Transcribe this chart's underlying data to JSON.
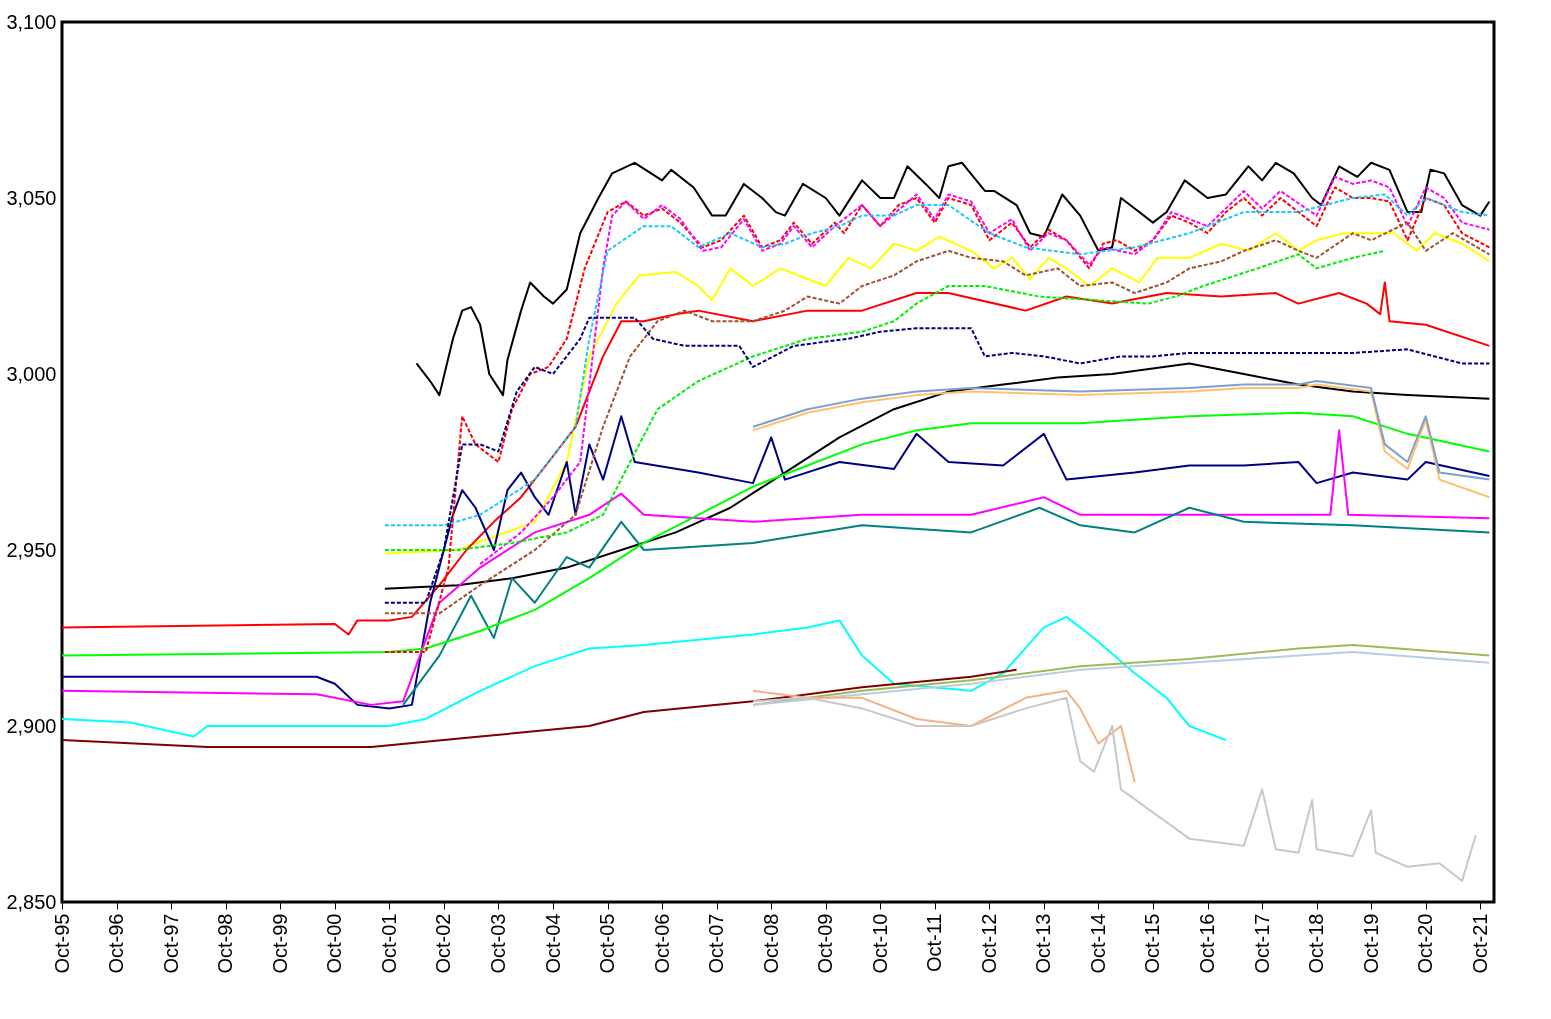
{
  "chart_data": {
    "type": "line",
    "xlim": [
      "1995-10",
      "2022-01"
    ],
    "ylim": [
      2850,
      3100
    ],
    "yticks": [
      {
        "value": 2850,
        "label": "2,850"
      },
      {
        "value": 2900,
        "label": "2,900"
      },
      {
        "value": 2950,
        "label": "2,950"
      },
      {
        "value": 3000,
        "label": "3,000"
      },
      {
        "value": 3050,
        "label": "3,050"
      },
      {
        "value": 3100,
        "label": "3,100"
      }
    ],
    "xticks": [
      {
        "value": "1995-10",
        "label": "Oct-95"
      },
      {
        "value": "1996-10",
        "label": "Oct-96"
      },
      {
        "value": "1997-10",
        "label": "Oct-97"
      },
      {
        "value": "1998-10",
        "label": "Oct-98"
      },
      {
        "value": "1999-10",
        "label": "Oct-99"
      },
      {
        "value": "2000-10",
        "label": "Oct-00"
      },
      {
        "value": "2001-10",
        "label": "Oct-01"
      },
      {
        "value": "2002-10",
        "label": "Oct-02"
      },
      {
        "value": "2003-10",
        "label": "Oct-03"
      },
      {
        "value": "2004-10",
        "label": "Oct-04"
      },
      {
        "value": "2005-10",
        "label": "Oct-05"
      },
      {
        "value": "2006-10",
        "label": "Oct-06"
      },
      {
        "value": "2007-10",
        "label": "Oct-07"
      },
      {
        "value": "2008-10",
        "label": "Oct-08"
      },
      {
        "value": "2009-10",
        "label": "Oct-09"
      },
      {
        "value": "2010-10",
        "label": "Oct-10"
      },
      {
        "value": "2011-10",
        "label": "Oct-11"
      },
      {
        "value": "2012-10",
        "label": "Oct-12"
      },
      {
        "value": "2013-10",
        "label": "Oct-13"
      },
      {
        "value": "2014-10",
        "label": "Oct-14"
      },
      {
        "value": "2015-10",
        "label": "Oct-15"
      },
      {
        "value": "2016-10",
        "label": "Oct-16"
      },
      {
        "value": "2017-10",
        "label": "Oct-17"
      },
      {
        "value": "2018-10",
        "label": "Oct-18"
      },
      {
        "value": "2019-10",
        "label": "Oct-19"
      },
      {
        "value": "2020-10",
        "label": "Oct-20"
      },
      {
        "value": "2021-10",
        "label": "Oct-21"
      }
    ],
    "grid": false,
    "line_style": "solid",
    "marker": "none",
    "series": [
      {
        "color": "#000000",
        "x": [
          "2002-04",
          "2002-07",
          "2002-09",
          "2002-12",
          "2003-02",
          "2003-04",
          "2003-06",
          "2003-08",
          "2003-11",
          "2003-12",
          "2004-03",
          "2004-05",
          "2004-08",
          "2004-10",
          "2005-01",
          "2005-04",
          "2005-08",
          "2005-11",
          "2006-04",
          "2006-10",
          "2006-12",
          "2007-05",
          "2007-09",
          "2007-12",
          "2008-04",
          "2008-08",
          "2008-11",
          "2009-01",
          "2009-05",
          "2009-10",
          "2010-01",
          "2010-06",
          "2010-10",
          "2011-01",
          "2011-04",
          "2011-08",
          "2011-11",
          "2012-01",
          "2012-04",
          "2012-09",
          "2012-11",
          "2013-04",
          "2013-07",
          "2013-10",
          "2014-02",
          "2014-06",
          "2014-10",
          "2015-01",
          "2015-03",
          "2015-06",
          "2015-10",
          "2016-01",
          "2016-05",
          "2016-10",
          "2017-02",
          "2017-07",
          "2017-10",
          "2018-01",
          "2018-05",
          "2018-09",
          "2018-11",
          "2019-03",
          "2019-07",
          "2019-10",
          "2020-02",
          "2020-06",
          "2020-09",
          "2020-11",
          "2021-02",
          "2021-06",
          "2021-10",
          "2021-12"
        ],
        "values": [
          3003,
          2998,
          2994,
          3010,
          3018,
          3019,
          3014,
          3000,
          2994,
          3004,
          3018,
          3026,
          3022,
          3020,
          3024,
          3040,
          3050,
          3057,
          3060,
          3055,
          3058,
          3053,
          3045,
          3045,
          3054,
          3050,
          3046,
          3045,
          3054,
          3050,
          3045,
          3055,
          3050,
          3050,
          3059,
          3054,
          3050,
          3059,
          3060,
          3052,
          3052,
          3048,
          3040,
          3039,
          3051,
          3045,
          3035,
          3036,
          3050,
          3047,
          3043,
          3046,
          3055,
          3050,
          3051,
          3059,
          3055,
          3060,
          3057,
          3050,
          3048,
          3059,
          3056,
          3060,
          3058,
          3046,
          3046,
          3058,
          3057,
          3048,
          3045,
          3049
        ]
      },
      {
        "color": "#ff0000",
        "line_style": "dashed",
        "x": [
          "2001-09",
          "2002-06",
          "2002-11",
          "2003-02",
          "2003-05",
          "2003-10",
          "2004-01",
          "2004-05",
          "2004-09",
          "2005-01",
          "2005-05",
          "2005-10",
          "2006-02",
          "2006-06",
          "2006-10",
          "2007-02",
          "2007-07",
          "2007-11",
          "2008-04",
          "2008-08",
          "2008-12",
          "2009-03",
          "2009-07",
          "2009-12",
          "2010-02",
          "2010-06",
          "2010-10",
          "2011-02",
          "2011-06",
          "2011-10",
          "2012-01",
          "2012-06",
          "2012-10",
          "2013-03",
          "2013-07",
          "2013-11",
          "2014-03",
          "2014-08",
          "2014-11",
          "2015-02",
          "2015-06",
          "2015-10",
          "2016-02",
          "2016-06",
          "2016-10",
          "2017-02",
          "2017-06",
          "2017-10",
          "2018-02",
          "2018-06",
          "2018-10",
          "2019-02",
          "2019-06",
          "2019-10",
          "2020-02",
          "2020-06",
          "2020-10",
          "2021-02",
          "2021-06",
          "2021-12"
        ],
        "values": [
          2921,
          2921,
          2945,
          2988,
          2980,
          2975,
          2990,
          3000,
          3002,
          3010,
          3030,
          3046,
          3049,
          3045,
          3047,
          3043,
          3036,
          3038,
          3045,
          3036,
          3038,
          3043,
          3037,
          3043,
          3040,
          3048,
          3042,
          3048,
          3050,
          3043,
          3050,
          3048,
          3038,
          3043,
          3036,
          3041,
          3038,
          3030,
          3037,
          3038,
          3035,
          3038,
          3045,
          3043,
          3040,
          3046,
          3050,
          3045,
          3050,
          3046,
          3042,
          3053,
          3050,
          3050,
          3049,
          3038,
          3050,
          3048,
          3040,
          3036
        ]
      },
      {
        "color": "#ff00ff",
        "line_style": "dashed",
        "x": [
          "2003-06",
          "2004-03",
          "2004-10",
          "2005-04",
          "2005-09",
          "2005-11",
          "2006-02",
          "2006-06",
          "2006-10",
          "2007-02",
          "2007-07",
          "2007-11",
          "2008-04",
          "2008-08",
          "2008-12",
          "2009-03",
          "2009-07",
          "2009-12",
          "2010-06",
          "2010-10",
          "2011-06",
          "2011-10",
          "2012-01",
          "2012-06",
          "2012-10",
          "2013-03",
          "2013-07",
          "2013-11",
          "2014-03",
          "2014-08",
          "2014-11",
          "2015-06",
          "2015-10",
          "2016-02",
          "2016-10",
          "2017-06",
          "2017-10",
          "2018-02",
          "2018-10",
          "2019-02",
          "2019-06",
          "2019-10",
          "2020-02",
          "2020-06",
          "2020-10",
          "2021-02",
          "2021-06",
          "2021-12"
        ],
        "values": [
          2946,
          2955,
          2965,
          2975,
          3030,
          3045,
          3049,
          3044,
          3048,
          3044,
          3035,
          3036,
          3044,
          3035,
          3037,
          3042,
          3036,
          3042,
          3048,
          3042,
          3051,
          3044,
          3051,
          3049,
          3040,
          3044,
          3035,
          3040,
          3038,
          3031,
          3036,
          3034,
          3038,
          3046,
          3042,
          3052,
          3047,
          3052,
          3045,
          3056,
          3054,
          3055,
          3053,
          3042,
          3053,
          3050,
          3043,
          3041
        ]
      },
      {
        "color": "#1ec8ff",
        "line_style": "dashed",
        "x": [
          "2001-09",
          "2002-10",
          "2003-06",
          "2004-06",
          "2005-03",
          "2005-06",
          "2005-10",
          "2006-06",
          "2006-12",
          "2007-06",
          "2008-01",
          "2008-08",
          "2009-01",
          "2009-07",
          "2010-01",
          "2010-06",
          "2011-01",
          "2011-06",
          "2012-01",
          "2012-10",
          "2013-06",
          "2014-06",
          "2015-06",
          "2016-06",
          "2017-06",
          "2018-06",
          "2019-06",
          "2020-01",
          "2020-06",
          "2020-10",
          "2021-06",
          "2021-12"
        ],
        "values": [
          2957,
          2957,
          2960,
          2970,
          2985,
          3010,
          3035,
          3042,
          3042,
          3036,
          3040,
          3036,
          3037,
          3040,
          3042,
          3045,
          3045,
          3048,
          3048,
          3040,
          3036,
          3034,
          3036,
          3040,
          3046,
          3046,
          3050,
          3051,
          3045,
          3050,
          3046,
          3045
        ]
      },
      {
        "color": "#ffff00",
        "x": [
          "2001-09",
          "2003-01",
          "2004-06",
          "2005-01",
          "2005-06",
          "2005-12",
          "2006-05",
          "2007-01",
          "2007-06",
          "2007-09",
          "2008-01",
          "2008-06",
          "2008-12",
          "2009-06",
          "2009-10",
          "2010-03",
          "2010-08",
          "2011-01",
          "2011-06",
          "2011-11",
          "2012-06",
          "2012-11",
          "2013-03",
          "2013-07",
          "2013-11",
          "2014-03",
          "2014-08",
          "2015-01",
          "2015-07",
          "2015-11",
          "2016-06",
          "2017-01",
          "2017-07",
          "2018-01",
          "2018-06",
          "2018-10",
          "2019-04",
          "2019-10",
          "2020-03",
          "2020-08",
          "2020-12",
          "2021-06",
          "2021-12"
        ],
        "values": [
          2949,
          2950,
          2958,
          2975,
          3005,
          3020,
          3028,
          3029,
          3025,
          3021,
          3030,
          3025,
          3030,
          3027,
          3025,
          3033,
          3030,
          3037,
          3035,
          3039,
          3035,
          3030,
          3033,
          3027,
          3033,
          3030,
          3025,
          3030,
          3026,
          3033,
          3033,
          3037,
          3035,
          3040,
          3035,
          3038,
          3040,
          3040,
          3040,
          3035,
          3040,
          3037,
          3032
        ]
      },
      {
        "color": "#a0522d",
        "line_style": "dashed",
        "x": [
          "2001-09",
          "2002-09",
          "2003-06",
          "2004-06",
          "2005-03",
          "2005-09",
          "2006-03",
          "2006-09",
          "2007-03",
          "2007-09",
          "2008-06",
          "2009-01",
          "2009-06",
          "2010-01",
          "2010-06",
          "2011-01",
          "2011-06",
          "2012-01",
          "2012-06",
          "2013-01",
          "2013-06",
          "2014-01",
          "2014-06",
          "2015-01",
          "2015-06",
          "2016-01",
          "2016-06",
          "2017-01",
          "2017-06",
          "2018-01",
          "2018-06",
          "2018-10",
          "2019-06",
          "2019-10",
          "2020-06",
          "2020-10",
          "2021-04",
          "2021-12"
        ],
        "values": [
          2932,
          2932,
          2940,
          2950,
          2960,
          2985,
          3005,
          3015,
          3018,
          3015,
          3015,
          3018,
          3022,
          3020,
          3025,
          3028,
          3032,
          3035,
          3033,
          3032,
          3028,
          3030,
          3025,
          3026,
          3023,
          3026,
          3030,
          3032,
          3035,
          3038,
          3035,
          3033,
          3040,
          3038,
          3043,
          3035,
          3040,
          3034
        ]
      },
      {
        "color": "#00ee00",
        "line_style": "dashed",
        "x": [
          "2001-09",
          "2003-01",
          "2004-01",
          "2005-01",
          "2005-09",
          "2006-03",
          "2006-09",
          "2007-06",
          "2008-06",
          "2009-06",
          "2010-06",
          "2011-01",
          "2011-06",
          "2012-01",
          "2012-09",
          "2013-09",
          "2014-09",
          "2015-09",
          "2016-03",
          "2016-09",
          "2017-09",
          "2018-06",
          "2018-10",
          "2019-06",
          "2020-01"
        ],
        "values": [
          2950,
          2950,
          2952,
          2955,
          2960,
          2975,
          2990,
          2998,
          3005,
          3010,
          3012,
          3015,
          3020,
          3025,
          3025,
          3022,
          3021,
          3020,
          3022,
          3025,
          3030,
          3034,
          3030,
          3033,
          3035
        ]
      },
      {
        "color": "#000080",
        "line_style": "dashed",
        "x": [
          "2001-09",
          "2002-06",
          "2002-10",
          "2003-02",
          "2003-06",
          "2003-10",
          "2004-02",
          "2004-06",
          "2004-10",
          "2005-04",
          "2005-06",
          "2006-04",
          "2006-08",
          "2007-03",
          "2008-03",
          "2008-06",
          "2009-03",
          "2010-03",
          "2010-10",
          "2011-06",
          "2012-06",
          "2012-09",
          "2013-03",
          "2013-10",
          "2014-06",
          "2015-03",
          "2015-10",
          "2016-06",
          "2017-06",
          "2018-06",
          "2019-06",
          "2020-06",
          "2021-06",
          "2021-12"
        ],
        "values": [
          2935,
          2935,
          2950,
          2980,
          2980,
          2978,
          2995,
          3002,
          3000,
          3010,
          3016,
          3016,
          3010,
          3008,
          3008,
          3002,
          3008,
          3010,
          3012,
          3013,
          3013,
          3005,
          3006,
          3005,
          3003,
          3005,
          3005,
          3006,
          3006,
          3006,
          3006,
          3007,
          3003,
          3003
        ]
      },
      {
        "color": "#ff0000",
        "x": [
          "1995-10",
          "2000-10",
          "2001-01",
          "2001-03",
          "2001-10",
          "2002-03",
          "2002-09",
          "2003-03",
          "2003-09",
          "2004-03",
          "2004-09",
          "2005-03",
          "2005-09",
          "2006-01",
          "2006-06",
          "2007-01",
          "2007-06",
          "2008-06",
          "2009-06",
          "2010-06",
          "2011-06",
          "2012-01",
          "2013-06",
          "2014-03",
          "2015-01",
          "2016-01",
          "2017-01",
          "2018-01",
          "2018-06",
          "2019-03",
          "2019-09",
          "2019-12",
          "2020-01",
          "2020-02",
          "2020-10",
          "2021-12"
        ],
        "values": [
          2928,
          2929,
          2926,
          2930,
          2930,
          2931,
          2940,
          2950,
          2958,
          2965,
          2975,
          2985,
          3005,
          3015,
          3015,
          3017,
          3018,
          3015,
          3018,
          3018,
          3023,
          3023,
          3018,
          3022,
          3020,
          3023,
          3022,
          3023,
          3020,
          3023,
          3020,
          3017,
          3026,
          3015,
          3014,
          3008
        ]
      },
      {
        "color": "#000000",
        "x": [
          "2001-09",
          "2003-01",
          "2004-01",
          "2005-01",
          "2006-01",
          "2007-01",
          "2008-01",
          "2009-01",
          "2010-01",
          "2011-01",
          "2012-01",
          "2013-01",
          "2014-01",
          "2015-01",
          "2016-06",
          "2017-06",
          "2018-06",
          "2019-06",
          "2020-06",
          "2021-12"
        ],
        "values": [
          2939,
          2940,
          2942,
          2945,
          2950,
          2955,
          2962,
          2972,
          2982,
          2990,
          2995,
          2997,
          2999,
          3000,
          3003,
          3000,
          2997,
          2995,
          2994,
          2993
        ]
      },
      {
        "color": "#000080",
        "x": [
          "1995-10",
          "2000-06",
          "2000-10",
          "2001-03",
          "2001-10",
          "2002-03",
          "2002-07",
          "2002-12",
          "2003-02",
          "2003-05",
          "2003-09",
          "2003-12",
          "2004-03",
          "2004-06",
          "2004-09",
          "2005-01",
          "2005-03",
          "2005-06",
          "2005-09",
          "2006-01",
          "2006-04",
          "2007-06",
          "2008-06",
          "2008-10",
          "2009-01",
          "2010-01",
          "2011-01",
          "2011-06",
          "2012-01",
          "2013-01",
          "2013-10",
          "2014-03",
          "2015-06",
          "2016-06",
          "2017-06",
          "2018-06",
          "2018-10",
          "2019-06",
          "2020-06",
          "2020-10",
          "2021-12"
        ],
        "values": [
          2914,
          2914,
          2912,
          2906,
          2905,
          2906,
          2935,
          2960,
          2967,
          2962,
          2950,
          2967,
          2972,
          2965,
          2960,
          2975,
          2960,
          2980,
          2970,
          2988,
          2975,
          2972,
          2969,
          2982,
          2970,
          2975,
          2973,
          2983,
          2975,
          2974,
          2983,
          2970,
          2972,
          2974,
          2974,
          2975,
          2969,
          2972,
          2970,
          2975,
          2971
        ]
      },
      {
        "color": "#ff00ff",
        "x": [
          "1995-10",
          "2000-06",
          "2001-06",
          "2002-01",
          "2002-09",
          "2003-06",
          "2004-06",
          "2005-06",
          "2006-01",
          "2006-06",
          "2008-06",
          "2010-06",
          "2012-06",
          "2013-10",
          "2014-06",
          "2016-06",
          "2018-06",
          "2019-01",
          "2019-03",
          "2019-05",
          "2021-12"
        ],
        "values": [
          2910,
          2909,
          2906,
          2907,
          2935,
          2945,
          2955,
          2960,
          2966,
          2960,
          2958,
          2960,
          2960,
          2965,
          2960,
          2960,
          2960,
          2960,
          2984,
          2960,
          2959
        ]
      },
      {
        "color": "#008080",
        "x": [
          "2002-01",
          "2002-09",
          "2003-04",
          "2003-09",
          "2004-01",
          "2004-06",
          "2005-01",
          "2005-06",
          "2006-01",
          "2006-06",
          "2008-06",
          "2010-06",
          "2012-06",
          "2013-09",
          "2014-06",
          "2015-06",
          "2016-06",
          "2017-06",
          "2019-06",
          "2021-12"
        ],
        "values": [
          2906,
          2920,
          2937,
          2925,
          2942,
          2935,
          2948,
          2945,
          2958,
          2950,
          2952,
          2957,
          2955,
          2962,
          2957,
          2955,
          2962,
          2958,
          2957,
          2955
        ]
      },
      {
        "color": "#00ff00",
        "x": [
          "1995-10",
          "2001-10",
          "2002-06",
          "2003-06",
          "2004-06",
          "2005-06",
          "2006-06",
          "2007-06",
          "2008-06",
          "2009-06",
          "2010-06",
          "2011-06",
          "2012-06",
          "2014-06",
          "2016-06",
          "2018-06",
          "2019-06",
          "2020-06",
          "2021-12"
        ],
        "values": [
          2920,
          2921,
          2922,
          2927,
          2933,
          2942,
          2952,
          2960,
          2968,
          2974,
          2980,
          2984,
          2986,
          2986,
          2988,
          2989,
          2988,
          2983,
          2978
        ]
      },
      {
        "color": "#00ffff",
        "x": [
          "1995-10",
          "1997-01",
          "1998-03",
          "1998-06",
          "2001-10",
          "2002-06",
          "2003-06",
          "2004-06",
          "2005-06",
          "2006-06",
          "2008-06",
          "2009-06",
          "2010-01",
          "2010-06",
          "2011-01",
          "2012-06",
          "2013-01",
          "2013-10",
          "2014-03",
          "2014-09",
          "2015-06",
          "2016-01",
          "2016-06",
          "2017-02"
        ],
        "values": [
          2902,
          2901,
          2897,
          2900,
          2900,
          2902,
          2910,
          2917,
          2922,
          2923,
          2926,
          2928,
          2930,
          2920,
          2912,
          2910,
          2915,
          2928,
          2931,
          2925,
          2915,
          2908,
          2900,
          2896
        ]
      },
      {
        "color": "#800000",
        "x": [
          "1995-10",
          "1998-06",
          "2001-06",
          "2003-06",
          "2005-06",
          "2006-06",
          "2008-06",
          "2010-06",
          "2012-06",
          "2013-04"
        ],
        "values": [
          2896,
          2894,
          2894,
          2897,
          2900,
          2904,
          2907,
          2911,
          2914,
          2916
        ]
      },
      {
        "color": "#ffc06a",
        "x": [
          "2008-06",
          "2009-06",
          "2010-06",
          "2011-06",
          "2012-06",
          "2014-06",
          "2016-06",
          "2017-06",
          "2018-06",
          "2018-10",
          "2019-10",
          "2020-01",
          "2020-06",
          "2020-10",
          "2021-01",
          "2021-12"
        ],
        "values": [
          2984,
          2989,
          2992,
          2994,
          2995,
          2994,
          2995,
          2996,
          2996,
          2997,
          2995,
          2978,
          2973,
          2987,
          2970,
          2965
        ]
      },
      {
        "color": "#7f9fcf",
        "x": [
          "2008-06",
          "2009-06",
          "2010-06",
          "2011-06",
          "2012-06",
          "2014-06",
          "2016-06",
          "2017-06",
          "2018-06",
          "2018-10",
          "2019-10",
          "2020-01",
          "2020-06",
          "2020-10",
          "2021-01",
          "2021-12"
        ],
        "values": [
          2985,
          2990,
          2993,
          2995,
          2996,
          2995,
          2996,
          2997,
          2997,
          2998,
          2996,
          2980,
          2975,
          2988,
          2972,
          2970
        ]
      },
      {
        "color": "#9bbb59",
        "x": [
          "2008-06",
          "2010-06",
          "2012-06",
          "2014-06",
          "2016-06",
          "2018-06",
          "2019-06",
          "2021-12"
        ],
        "values": [
          2906,
          2910,
          2913,
          2917,
          2919,
          2922,
          2923,
          2920
        ]
      },
      {
        "color": "#b8cce4",
        "x": [
          "2008-06",
          "2010-06",
          "2012-06",
          "2014-06",
          "2016-06",
          "2018-06",
          "2019-06",
          "2021-12"
        ],
        "values": [
          2906,
          2909,
          2912,
          2916,
          2918,
          2920,
          2921,
          2918
        ]
      },
      {
        "color": "#f4b183",
        "x": [
          "2008-06",
          "2009-06",
          "2010-06",
          "2011-06",
          "2012-06",
          "2013-06",
          "2014-03",
          "2014-06",
          "2014-10",
          "2015-03",
          "2015-06"
        ],
        "values": [
          2910,
          2908,
          2908,
          2902,
          2900,
          2908,
          2910,
          2905,
          2895,
          2900,
          2884
        ]
      },
      {
        "color": "#c8c8c8",
        "x": [
          "2008-06",
          "2009-06",
          "2010-06",
          "2011-06",
          "2012-06",
          "2013-06",
          "2014-03",
          "2014-06",
          "2014-09",
          "2015-01",
          "2015-03",
          "2016-06",
          "2017-06",
          "2017-10",
          "2018-01",
          "2018-06",
          "2018-09",
          "2018-10",
          "2019-06",
          "2019-10",
          "2019-11",
          "2020-06",
          "2021-01",
          "2021-06",
          "2021-09"
        ],
        "values": [
          2907,
          2908,
          2905,
          2900,
          2900,
          2905,
          2908,
          2890,
          2887,
          2900,
          2882,
          2868,
          2866,
          2882,
          2865,
          2864,
          2879,
          2865,
          2863,
          2876,
          2864,
          2860,
          2861,
          2856,
          2869
        ]
      }
    ]
  }
}
